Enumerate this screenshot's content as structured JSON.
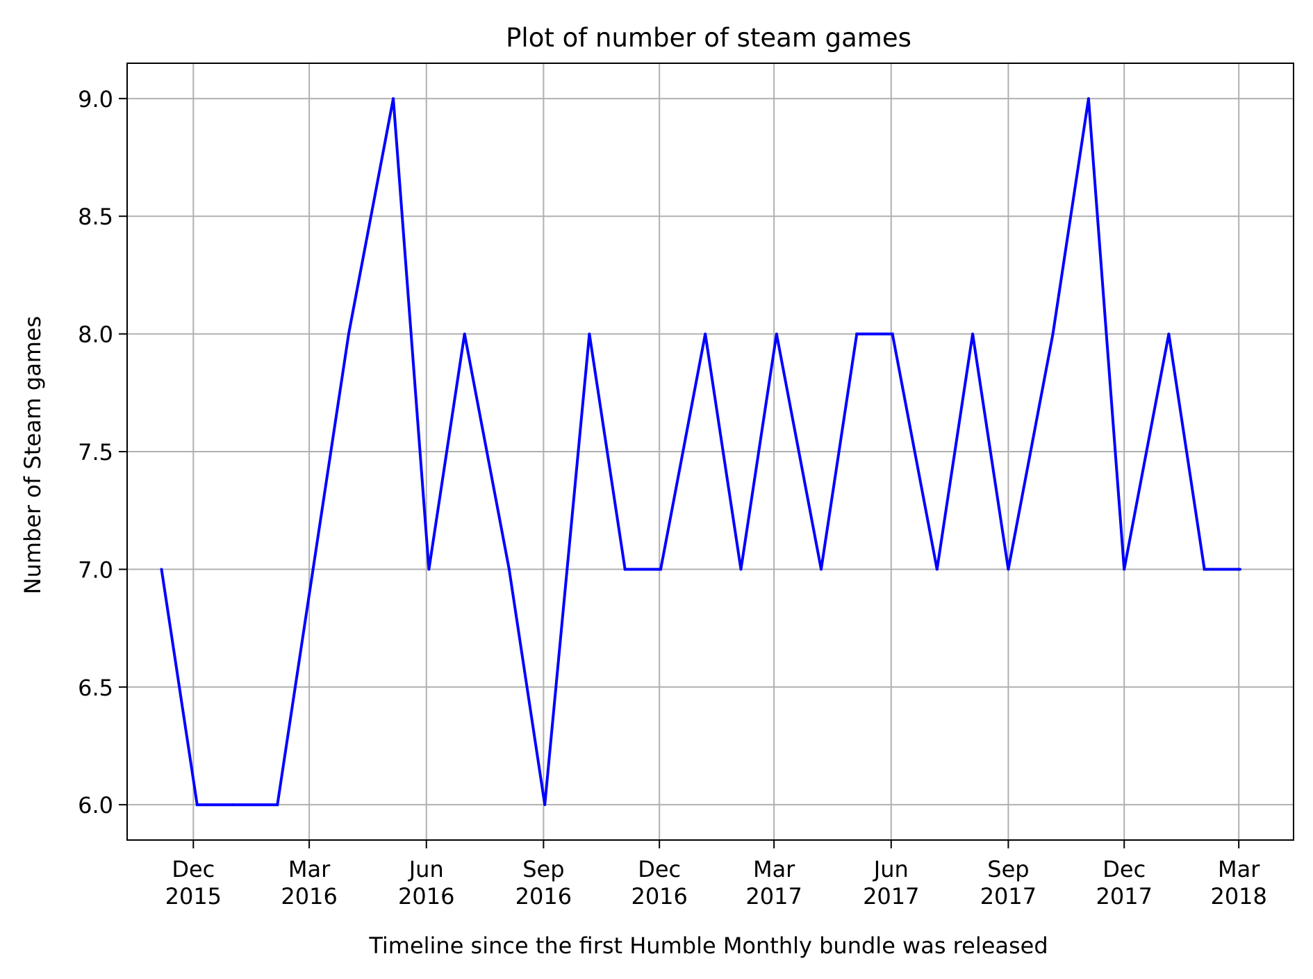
{
  "chart_data": {
    "type": "line",
    "title": "Plot of number of steam games",
    "xlabel": "Timeline since the first Humble Monthly bundle was released",
    "ylabel": "Number of Steam games",
    "x_unit": "month",
    "xlim": [
      "2015-10-10",
      "2018-04-13"
    ],
    "ylim": [
      5.85,
      9.15
    ],
    "grid": true,
    "series": [
      {
        "name": "Number of Steam games",
        "color": "#0000ff",
        "points": [
          {
            "x": "2015-11-06",
            "y": 7
          },
          {
            "x": "2015-12-04",
            "y": 6
          },
          {
            "x": "2016-01-01",
            "y": 6
          },
          {
            "x": "2016-02-05",
            "y": 6
          },
          {
            "x": "2016-03-04",
            "y": 7
          },
          {
            "x": "2016-04-01",
            "y": 8
          },
          {
            "x": "2016-05-06",
            "y": 9
          },
          {
            "x": "2016-06-03",
            "y": 7
          },
          {
            "x": "2016-07-01",
            "y": 8
          },
          {
            "x": "2016-08-05",
            "y": 7
          },
          {
            "x": "2016-09-02",
            "y": 6
          },
          {
            "x": "2016-10-07",
            "y": 8
          },
          {
            "x": "2016-11-04",
            "y": 7
          },
          {
            "x": "2016-12-02",
            "y": 7
          },
          {
            "x": "2017-01-06",
            "y": 8
          },
          {
            "x": "2017-02-03",
            "y": 7
          },
          {
            "x": "2017-03-03",
            "y": 8
          },
          {
            "x": "2017-04-07",
            "y": 7
          },
          {
            "x": "2017-05-05",
            "y": 8
          },
          {
            "x": "2017-06-02",
            "y": 8
          },
          {
            "x": "2017-07-07",
            "y": 7
          },
          {
            "x": "2017-08-04",
            "y": 8
          },
          {
            "x": "2017-09-01",
            "y": 7
          },
          {
            "x": "2017-10-06",
            "y": 8
          },
          {
            "x": "2017-11-03",
            "y": 9
          },
          {
            "x": "2017-12-01",
            "y": 7
          },
          {
            "x": "2018-01-05",
            "y": 8
          },
          {
            "x": "2018-02-02",
            "y": 7
          },
          {
            "x": "2018-03-02",
            "y": 7
          }
        ]
      }
    ],
    "x_ticks": [
      {
        "x": "2015-12-01",
        "line1": "Dec",
        "line2": "2015"
      },
      {
        "x": "2016-03-01",
        "line1": "Mar",
        "line2": "2016"
      },
      {
        "x": "2016-06-01",
        "line1": "Jun",
        "line2": "2016"
      },
      {
        "x": "2016-09-01",
        "line1": "Sep",
        "line2": "2016"
      },
      {
        "x": "2016-12-01",
        "line1": "Dec",
        "line2": "2016"
      },
      {
        "x": "2017-03-01",
        "line1": "Mar",
        "line2": "2017"
      },
      {
        "x": "2017-06-01",
        "line1": "Jun",
        "line2": "2017"
      },
      {
        "x": "2017-09-01",
        "line1": "Sep",
        "line2": "2017"
      },
      {
        "x": "2017-12-01",
        "line1": "Dec",
        "line2": "2017"
      },
      {
        "x": "2018-03-01",
        "line1": "Mar",
        "line2": "2018"
      }
    ],
    "y_ticks": [
      {
        "value": 6.0,
        "label": "6.0"
      },
      {
        "value": 6.5,
        "label": "6.5"
      },
      {
        "value": 7.0,
        "label": "7.0"
      },
      {
        "value": 7.5,
        "label": "7.5"
      },
      {
        "value": 8.0,
        "label": "8.0"
      },
      {
        "value": 8.5,
        "label": "8.5"
      },
      {
        "value": 9.0,
        "label": "9.0"
      }
    ],
    "grid_color": "#b0b0b0",
    "axis_color": "#000000"
  }
}
